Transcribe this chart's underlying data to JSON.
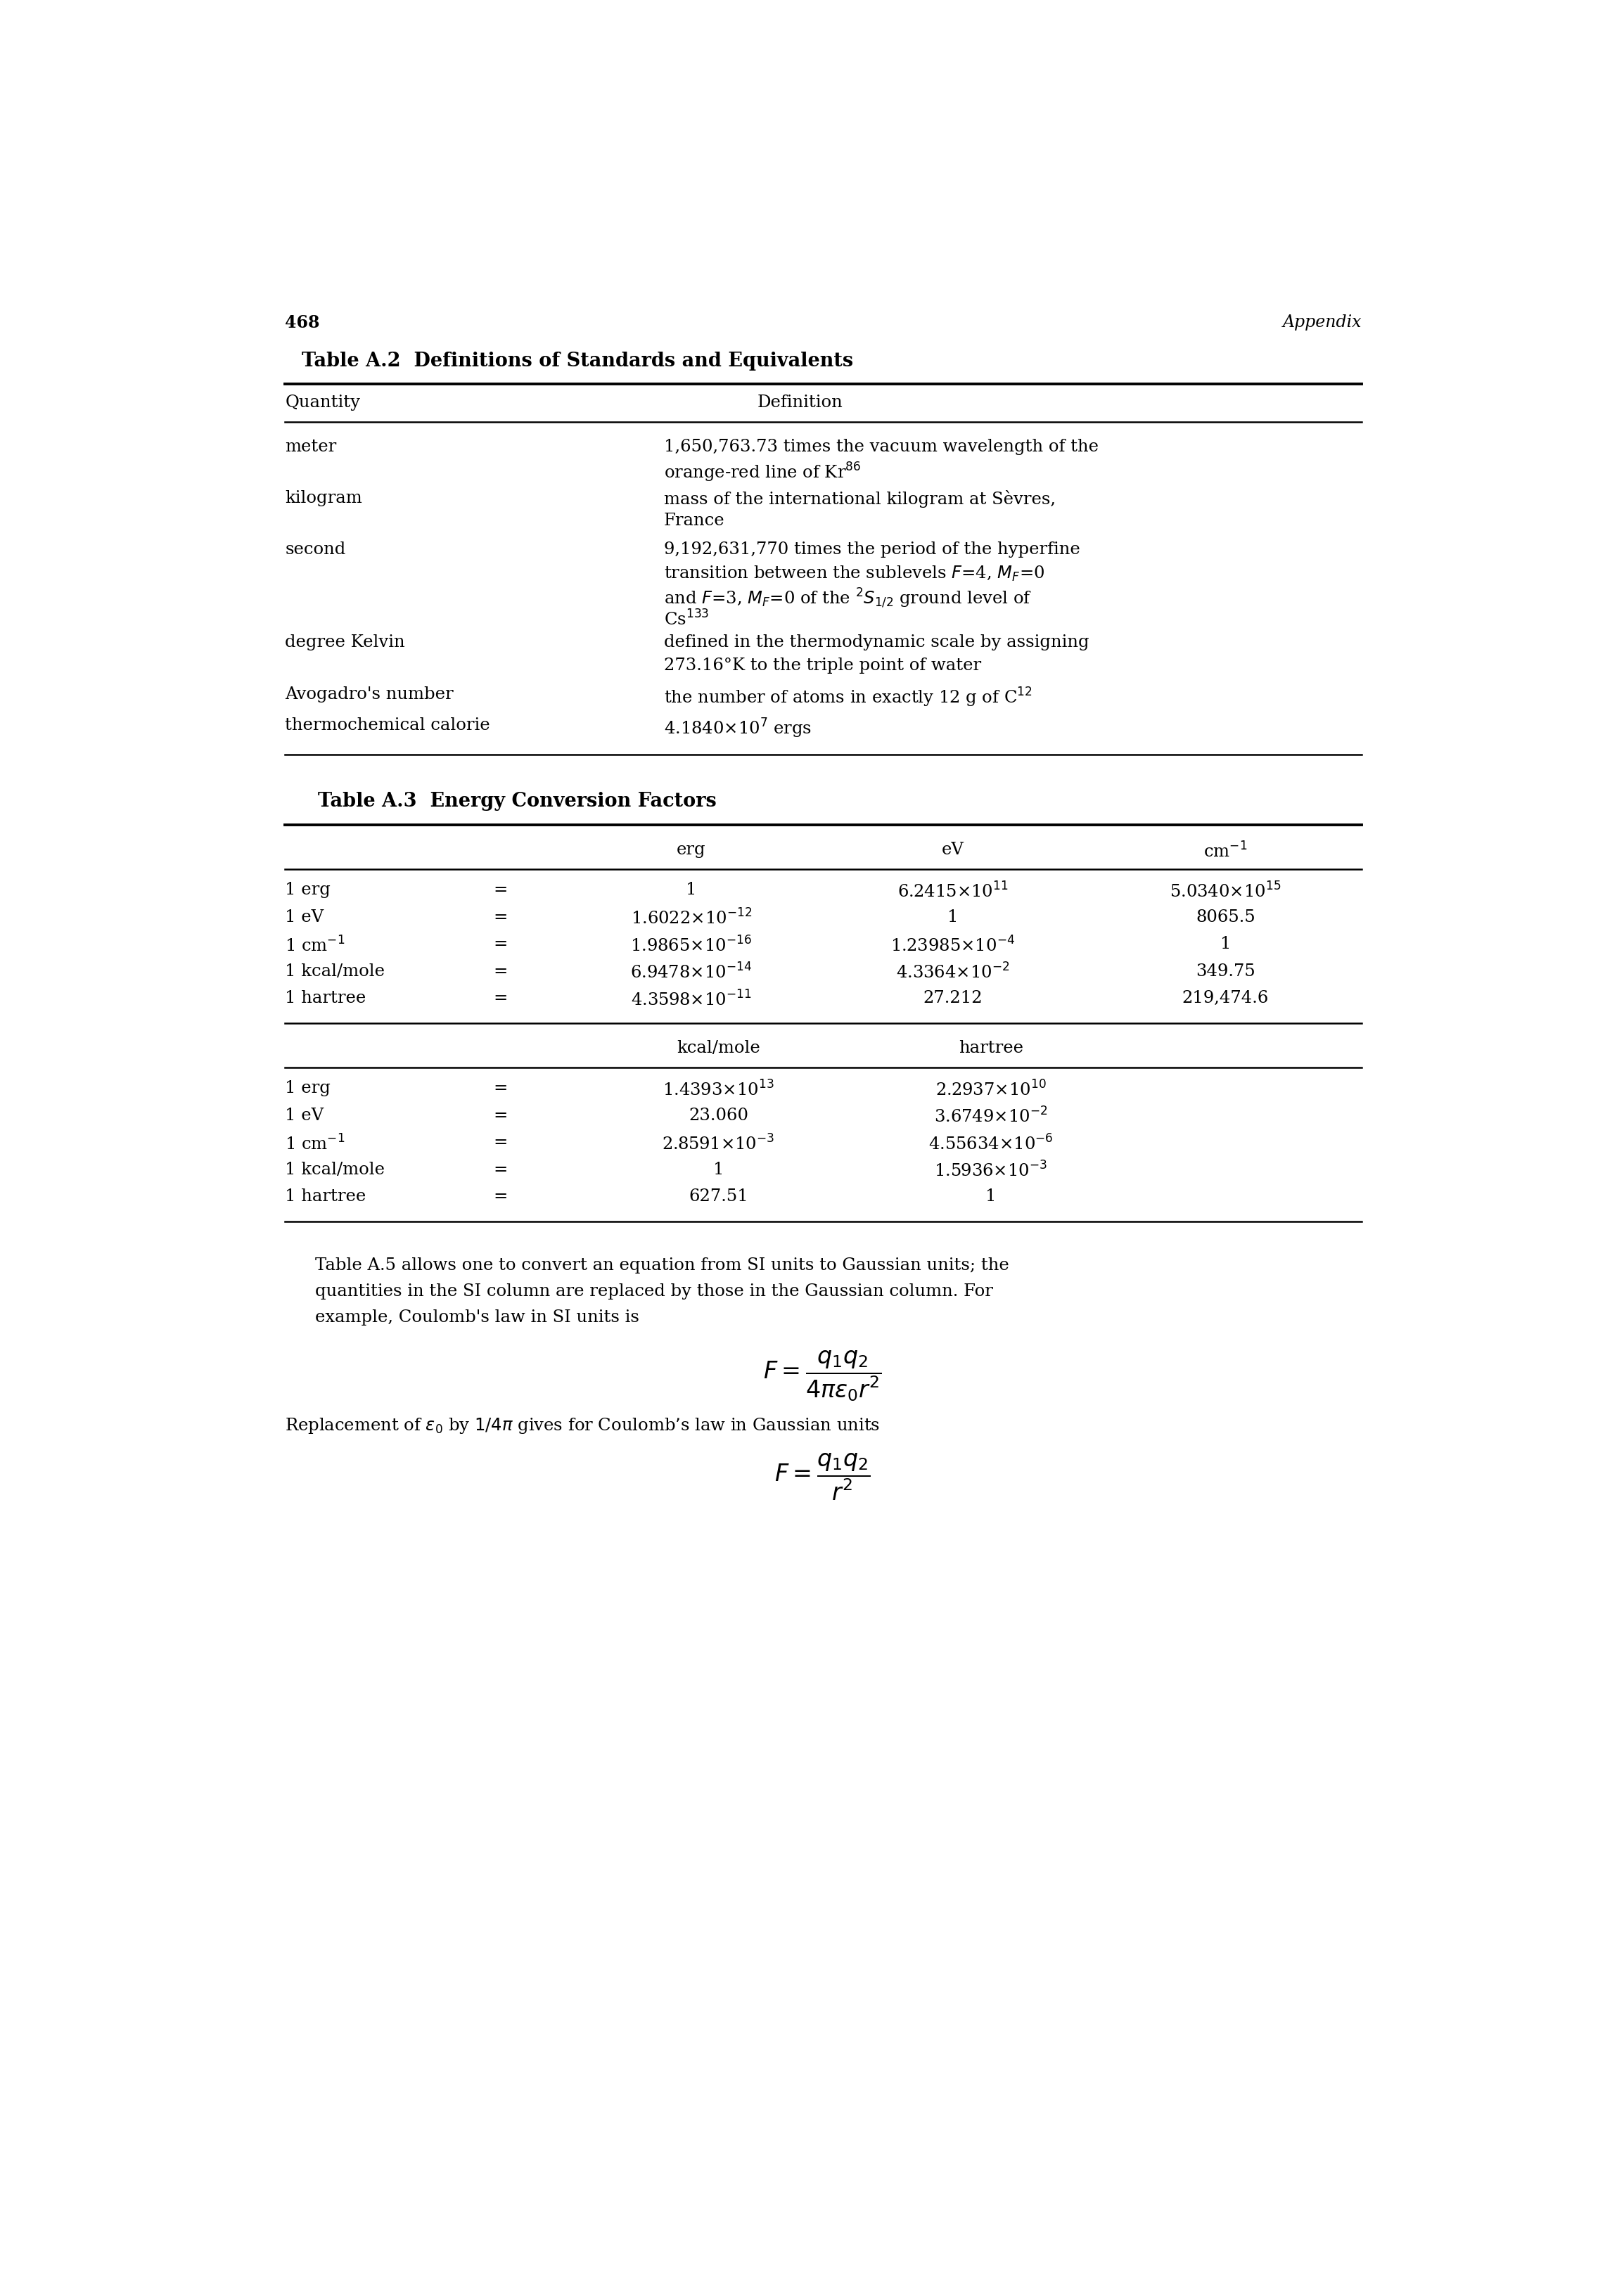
{
  "page_number": "468",
  "page_header_right": "Appendix",
  "background_color": "#ffffff",
  "text_color": "#000000",
  "table2_title": "Table A.2  Definitions of Standards and Equivalents",
  "table2_rows": [
    [
      "meter",
      [
        "1,650,763.73 times the vacuum wavelength of the",
        "orange-red line of Kr$^{86}$"
      ]
    ],
    [
      "kilogram",
      [
        "mass of the international kilogram at Sèvres,",
        "France"
      ]
    ],
    [
      "second",
      [
        "9,192,631,770 times the period of the hyperfine",
        "transition between the sublevels $F$=4, $M_F$=0",
        "and $F$=3, $M_F$=0 of the $^2S_{1/2}$ ground level of",
        "Cs$^{133}$"
      ]
    ],
    [
      "degree Kelvin",
      [
        "defined in the thermodynamic scale by assigning",
        "273.16°K to the triple point of water"
      ]
    ],
    [
      "Avogadro's number",
      [
        "the number of atoms in exactly 12 g of C$^{12}$"
      ]
    ],
    [
      "thermochemical calorie",
      [
        "4.1840×10$^7$ ergs"
      ]
    ]
  ],
  "table3_title": "Table A.3  Energy Conversion Factors",
  "table3_upper_rows": [
    [
      "1 erg",
      "=",
      "1",
      "6.2415×10$^{11}$",
      "5.0340×10$^{15}$"
    ],
    [
      "1 eV",
      "=",
      "1.6022×10$^{-12}$",
      "1",
      "8065.5"
    ],
    [
      "1 cm$^{-1}$",
      "=",
      "1.9865×10$^{-16}$",
      "1.23985×10$^{-4}$",
      "1"
    ],
    [
      "1 kcal/mole",
      "=",
      "6.9478×10$^{-14}$",
      "4.3364×10$^{-2}$",
      "349.75"
    ],
    [
      "1 hartree",
      "=",
      "4.3598×10$^{-11}$",
      "27.212",
      "219,474.6"
    ]
  ],
  "table3_lower_rows": [
    [
      "1 erg",
      "=",
      "1.4393×10$^{13}$",
      "2.2937×10$^{10}$"
    ],
    [
      "1 eV",
      "=",
      "23.060",
      "3.6749×10$^{-2}$"
    ],
    [
      "1 cm$^{-1}$",
      "=",
      "2.8591×10$^{-3}$",
      "4.55634×10$^{-6}$"
    ],
    [
      "1 kcal/mole",
      "=",
      "1",
      "1.5936×10$^{-3}$"
    ],
    [
      "1 hartree",
      "=",
      "627.51",
      "1"
    ]
  ],
  "bottom_text_lines": [
    "Table A.5 allows one to convert an equation from SI units to Gaussian units; the",
    "quantities in the SI column are replaced by those in the Gaussian column. For",
    "example, Coulomb's law in SI units is"
  ],
  "bottom_text2": "Replacement of $\\epsilon_0$ by $1/4\\pi$ gives for Coulomb’s law in Gaussian units"
}
